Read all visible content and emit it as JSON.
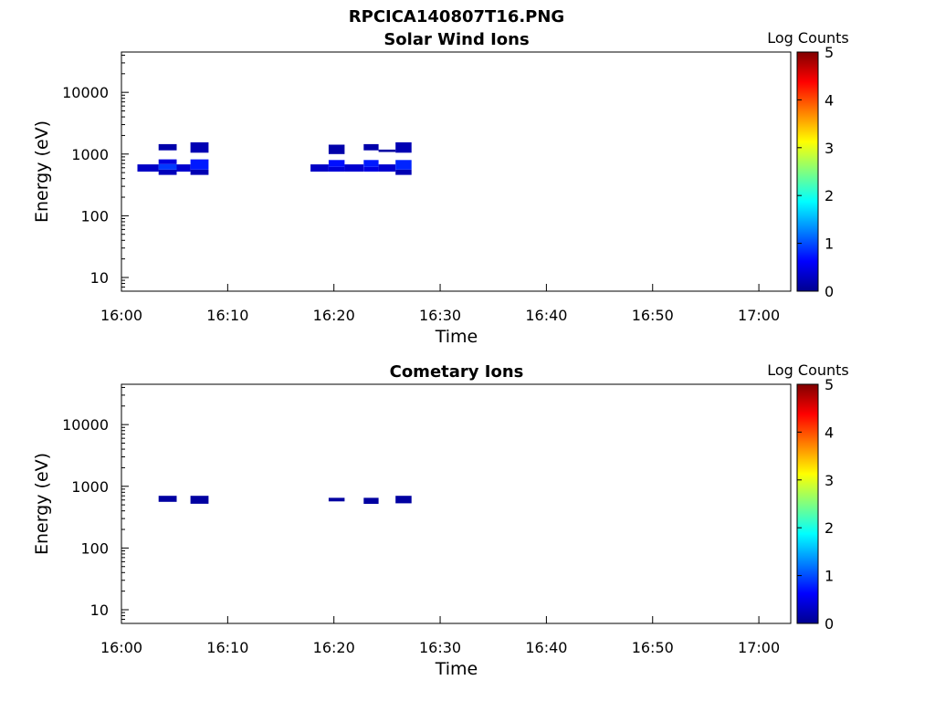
{
  "figure": {
    "title": "RPCICA140807T16.PNG"
  },
  "chart_data": [
    {
      "type": "heatmap",
      "title": "Solar Wind Ions",
      "xlabel": "Time",
      "ylabel": "Energy (eV)",
      "x_ticks": [
        "16:00",
        "16:10",
        "16:20",
        "16:30",
        "16:40",
        "16:50",
        "17:00"
      ],
      "y_ticks": [
        "10",
        "100",
        "1000",
        "10000"
      ],
      "y_scale": "log",
      "ylim": [
        6,
        45000
      ],
      "xlim": [
        "16:00",
        "17:03"
      ],
      "colorbar": {
        "label": "Log Counts",
        "ticks": [
          "0",
          "1",
          "2",
          "3",
          "4",
          "5"
        ],
        "range": [
          0,
          5
        ],
        "colormap": "jet"
      },
      "cells": [
        {
          "t0": "16:01.5",
          "t1": "16:03.5",
          "e0": 520,
          "e1": 680,
          "log_counts": 0.3
        },
        {
          "t0": "16:03.5",
          "t1": "16:05.2",
          "e0": 460,
          "e1": 560,
          "log_counts": 0.25
        },
        {
          "t0": "16:03.5",
          "t1": "16:05.2",
          "e0": 560,
          "e1": 690,
          "log_counts": 0.9
        },
        {
          "t0": "16:03.5",
          "t1": "16:05.2",
          "e0": 690,
          "e1": 820,
          "log_counts": 0.45
        },
        {
          "t0": "16:03.5",
          "t1": "16:05.2",
          "e0": 1150,
          "e1": 1450,
          "log_counts": 0.15
        },
        {
          "t0": "16:05.2",
          "t1": "16:06.5",
          "e0": 520,
          "e1": 680,
          "log_counts": 0.35
        },
        {
          "t0": "16:06.5",
          "t1": "16:08.2",
          "e0": 460,
          "e1": 560,
          "log_counts": 0.2
        },
        {
          "t0": "16:06.5",
          "t1": "16:08.2",
          "e0": 560,
          "e1": 820,
          "log_counts": 0.75
        },
        {
          "t0": "16:06.5",
          "t1": "16:08.2",
          "e0": 1050,
          "e1": 1550,
          "log_counts": 0.2
        },
        {
          "t0": "16:17.8",
          "t1": "16:19.5",
          "e0": 520,
          "e1": 680,
          "log_counts": 0.3
        },
        {
          "t0": "16:19.5",
          "t1": "16:21.0",
          "e0": 520,
          "e1": 620,
          "log_counts": 0.4
        },
        {
          "t0": "16:19.5",
          "t1": "16:21.0",
          "e0": 620,
          "e1": 800,
          "log_counts": 0.7
        },
        {
          "t0": "16:19.5",
          "t1": "16:21.0",
          "e0": 1000,
          "e1": 1420,
          "log_counts": 0.15
        },
        {
          "t0": "16:21.0",
          "t1": "16:22.8",
          "e0": 520,
          "e1": 680,
          "log_counts": 0.35
        },
        {
          "t0": "16:22.8",
          "t1": "16:24.2",
          "e0": 520,
          "e1": 620,
          "log_counts": 0.45
        },
        {
          "t0": "16:22.8",
          "t1": "16:24.2",
          "e0": 620,
          "e1": 800,
          "log_counts": 0.75
        },
        {
          "t0": "16:22.8",
          "t1": "16:24.2",
          "e0": 1150,
          "e1": 1450,
          "log_counts": 0.15
        },
        {
          "t0": "16:24.2",
          "t1": "16:25.8",
          "e0": 520,
          "e1": 680,
          "log_counts": 0.35
        },
        {
          "t0": "16:24.2",
          "t1": "16:25.8",
          "e0": 1080,
          "e1": 1180,
          "log_counts": 0.1
        },
        {
          "t0": "16:25.8",
          "t1": "16:27.3",
          "e0": 460,
          "e1": 560,
          "log_counts": 0.2
        },
        {
          "t0": "16:25.8",
          "t1": "16:27.3",
          "e0": 560,
          "e1": 800,
          "log_counts": 0.8
        },
        {
          "t0": "16:25.8",
          "t1": "16:27.3",
          "e0": 1050,
          "e1": 1550,
          "log_counts": 0.2
        }
      ]
    },
    {
      "type": "heatmap",
      "title": "Cometary Ions",
      "xlabel": "Time",
      "ylabel": "Energy (eV)",
      "x_ticks": [
        "16:00",
        "16:10",
        "16:20",
        "16:30",
        "16:40",
        "16:50",
        "17:00"
      ],
      "y_ticks": [
        "10",
        "100",
        "1000",
        "10000"
      ],
      "y_scale": "log",
      "ylim": [
        6,
        45000
      ],
      "xlim": [
        "16:00",
        "17:03"
      ],
      "colorbar": {
        "label": "Log Counts",
        "ticks": [
          "0",
          "1",
          "2",
          "3",
          "4",
          "5"
        ],
        "range": [
          0,
          5
        ],
        "colormap": "jet"
      },
      "cells": [
        {
          "t0": "16:03.5",
          "t1": "16:05.2",
          "e0": 560,
          "e1": 700,
          "log_counts": 0.1
        },
        {
          "t0": "16:06.5",
          "t1": "16:08.2",
          "e0": 520,
          "e1": 700,
          "log_counts": 0.1
        },
        {
          "t0": "16:19.5",
          "t1": "16:21.0",
          "e0": 570,
          "e1": 650,
          "log_counts": 0.1
        },
        {
          "t0": "16:22.8",
          "t1": "16:24.2",
          "e0": 520,
          "e1": 650,
          "log_counts": 0.1
        },
        {
          "t0": "16:25.8",
          "t1": "16:27.3",
          "e0": 530,
          "e1": 700,
          "log_counts": 0.1
        }
      ]
    }
  ]
}
